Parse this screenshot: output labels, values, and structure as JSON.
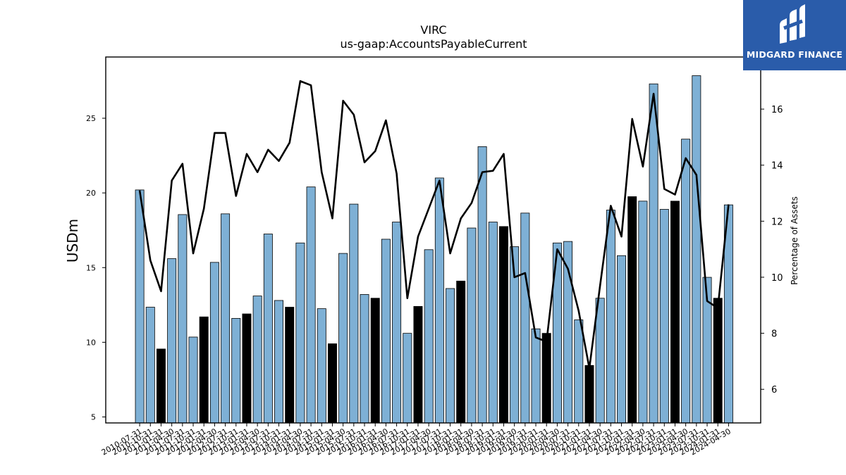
{
  "brand": {
    "name": "MIDGARD FINANCE",
    "background": "#2a5caa"
  },
  "chart_data": {
    "type": "bar",
    "title": "VIRC",
    "subtitle": "us-gaap:AccountsPayableCurrent",
    "ylabel": "USDm",
    "y2label": "Percentage of Assets",
    "ylim": [
      4.6,
      29.1
    ],
    "y2lim": [
      4.8,
      17.86
    ],
    "yticks": [
      5,
      10,
      15,
      20,
      25
    ],
    "y2ticks": [
      6,
      8,
      10,
      12,
      14,
      16
    ],
    "colors": {
      "bar_default": "#7eb0d5",
      "bar_highlight": "#000000",
      "line": "#000000"
    },
    "categories": [
      "2010-07-31",
      "2010-10-31",
      "2011-01-31",
      "2011-04-30",
      "2011-07-31",
      "2011-10-31",
      "2012-01-31",
      "2012-04-30",
      "2012-07-31",
      "2012-10-31",
      "2013-01-31",
      "2013-04-30",
      "2013-07-31",
      "2013-10-31",
      "2014-01-31",
      "2014-04-30",
      "2014-07-31",
      "2014-10-31",
      "2015-01-31",
      "2015-04-30",
      "2015-07-31",
      "2015-10-31",
      "2016-01-31",
      "2016-04-30",
      "2016-07-31",
      "2016-10-31",
      "2017-01-31",
      "2017-04-30",
      "2017-07-31",
      "2017-10-31",
      "2018-01-31",
      "2018-04-30",
      "2018-07-31",
      "2018-10-31",
      "2019-01-31",
      "2019-04-30",
      "2019-07-31",
      "2019-10-31",
      "2020-01-31",
      "2020-04-30",
      "2020-07-31",
      "2020-10-31",
      "2021-01-31",
      "2021-04-30",
      "2021-07-31",
      "2021-10-31",
      "2022-01-31",
      "2022-04-30",
      "2022-07-31",
      "2022-10-31",
      "2023-01-31",
      "2023-04-30",
      "2023-07-31",
      "2023-10-31",
      "2024-01-31",
      "2024-04-30"
    ],
    "xtick_labels": [
      "2010-07-31",
      "2010-10-31",
      "2011-01-31",
      "2011-04-30",
      "2011-07-31",
      "2011-10-31",
      "2012-01-31",
      "2012-04-30",
      "2012-07-31",
      "2012-10-31",
      "2013-01-31",
      "2013-04-30",
      "2013-07-31",
      "2013-10-31",
      "2014-01-31",
      "2014-04-30",
      "2014-07-31",
      "2014-10-31",
      "2015-01-31",
      "2015-04-30",
      "2015-07-31",
      "2015-10-31",
      "2016-01-31",
      "2016-04-30",
      "2016-07-31",
      "2016-10-31",
      "2017-01-31",
      "2017-04-30",
      "2017-07-31",
      "2017-10-31",
      "2018-01-31",
      "2018-04-30",
      "2018-07-31",
      "2018-10-31",
      "2019-01-31",
      "2019-04-30",
      "2019-07-31",
      "2019-10-31",
      "2020-01-31",
      "2020-04-30",
      "2020-07-31",
      "2020-10-31",
      "2021-01-31",
      "2021-04-30",
      "2021-07-31",
      "2021-10-31",
      "2022-01-31",
      "2022-04-30",
      "2022-07-31",
      "2022-10-31",
      "2023-01-31",
      "2023-04-30",
      "2023-07-31",
      "2023-10-31",
      "2024-01-31",
      "2024-04-30"
    ],
    "series": [
      {
        "kind": "bar",
        "axis": "left",
        "values": [
          20.2,
          12.35,
          9.55,
          15.6,
          18.55,
          10.35,
          11.7,
          15.35,
          18.6,
          11.6,
          11.9,
          13.1,
          17.25,
          12.8,
          12.35,
          16.65,
          20.4,
          12.25,
          9.9,
          15.95,
          19.25,
          13.2,
          12.95,
          16.9,
          18.05,
          10.6,
          12.4,
          16.2,
          21.0,
          13.6,
          14.1,
          17.65,
          23.1,
          18.05,
          17.75,
          16.4,
          18.65,
          10.9,
          10.6,
          16.65,
          16.75,
          11.5,
          8.45,
          12.95,
          18.85,
          15.8,
          19.75,
          19.45,
          27.3,
          18.9,
          19.45,
          23.6,
          27.85,
          14.35,
          12.95,
          19.2
        ],
        "highlight": [
          false,
          false,
          true,
          false,
          false,
          false,
          true,
          false,
          false,
          false,
          true,
          false,
          false,
          false,
          true,
          false,
          false,
          false,
          true,
          false,
          false,
          false,
          true,
          false,
          false,
          false,
          true,
          false,
          false,
          false,
          true,
          false,
          false,
          false,
          true,
          false,
          false,
          false,
          true,
          false,
          false,
          false,
          true,
          false,
          false,
          false,
          true,
          false,
          false,
          false,
          true,
          false,
          false,
          false,
          true,
          false
        ]
      },
      {
        "kind": "line",
        "axis": "right",
        "values": [
          13.1,
          10.6,
          9.5,
          13.45,
          14.05,
          10.85,
          12.45,
          15.15,
          15.15,
          12.9,
          14.4,
          13.75,
          14.55,
          14.15,
          14.8,
          17.0,
          16.85,
          13.75,
          12.1,
          16.3,
          15.8,
          14.1,
          14.5,
          15.6,
          13.7,
          9.25,
          11.45,
          12.45,
          13.45,
          10.85,
          12.1,
          12.65,
          13.75,
          13.8,
          14.4,
          10.0,
          10.15,
          7.85,
          7.7,
          11.0,
          10.3,
          8.8,
          6.75,
          9.7,
          12.55,
          11.45,
          15.65,
          13.95,
          16.55,
          13.15,
          12.95,
          14.25,
          13.65,
          9.15,
          8.9,
          12.6
        ]
      }
    ]
  }
}
